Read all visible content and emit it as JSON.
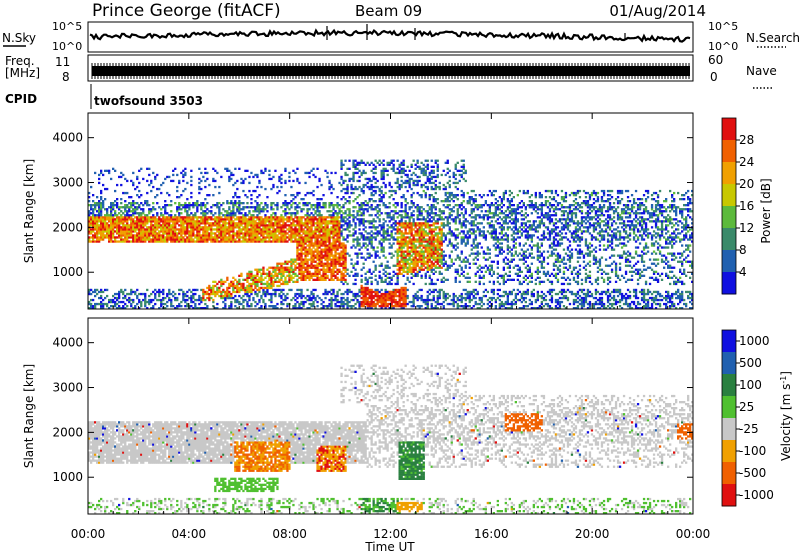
{
  "header": {
    "station": "Prince George (fitACF)",
    "beam": "Beam 09",
    "date": "01/Aug/2014"
  },
  "strips": {
    "nsky_label": "N.Sky",
    "nsky_ticks": [
      "10^5",
      "10^0"
    ],
    "nsearch_label": "N.Search",
    "nsearch_ticks": [
      "10^5",
      "10^0"
    ],
    "freq_label": "Freq.",
    "freq_unit": "[MHz]",
    "freq_ticks": [
      "11",
      "8"
    ],
    "nave_label": "Nave",
    "nave_ticks": [
      "60",
      "0"
    ],
    "cpid_label": "CPID",
    "cpid_value": "twofsound 3503"
  },
  "colors": {
    "power_scale": [
      "#1010e0",
      "#2060b0",
      "#3a8a6a",
      "#5cba3c",
      "#c8c800",
      "#f0a000",
      "#f06000",
      "#e01010"
    ],
    "velocity_scale": [
      "#1010e0",
      "#2060b0",
      "#2a8040",
      "#50c030",
      "#c8c8c8",
      "#f0a000",
      "#f06000",
      "#e01010"
    ]
  },
  "chart_data": [
    {
      "type": "heatmap",
      "title": "",
      "ylabel": "Slant Range [km]",
      "yticks": [
        "1000",
        "2000",
        "3000",
        "4000"
      ],
      "ylim": [
        180,
        4550
      ],
      "xlim": [
        0,
        24
      ],
      "colorbar": {
        "label": "Power [dB]",
        "ticks": [
          "4",
          "8",
          "12",
          "16",
          "20",
          "24",
          "28"
        ],
        "range": [
          0,
          32
        ]
      },
      "features": [
        {
          "t_start": 0.0,
          "t_end": 10.0,
          "r_low": 1650,
          "r_high": 2200,
          "value_db": 20
        },
        {
          "t_start": 8.2,
          "t_end": 10.2,
          "r_low": 800,
          "r_high": 1600,
          "value_db": 27
        },
        {
          "t_start": 11.0,
          "t_end": 12.5,
          "r_low": 200,
          "r_high": 550,
          "value_db": 30
        },
        {
          "t_start": 12.2,
          "t_end": 13.8,
          "r_low": 900,
          "r_high": 2000,
          "value_db": 26
        },
        {
          "t_start": 5.5,
          "t_end": 8.0,
          "r_low": 400,
          "r_high": 900,
          "value_db": 24
        }
      ]
    },
    {
      "type": "heatmap",
      "title": "",
      "ylabel": "Slant Range [km]",
      "xlabel": "Time UT",
      "yticks": [
        "1000",
        "2000",
        "3000",
        "4000"
      ],
      "xticks": [
        "00:00",
        "04:00",
        "08:00",
        "12:00",
        "16:00",
        "20:00",
        "00:00"
      ],
      "ylim": [
        180,
        4550
      ],
      "xlim": [
        0,
        24
      ],
      "colorbar": {
        "label": "Velocity [m s-1]",
        "ticks": [
          "1000",
          "500",
          "100",
          "25",
          "-25",
          "-100",
          "-500",
          "-1000"
        ]
      },
      "features": [
        {
          "t_start": 0.0,
          "t_end": 5.0,
          "r_low": 1300,
          "r_high": 2200,
          "value_ms": 0
        },
        {
          "t_start": 5.8,
          "t_end": 8.0,
          "r_low": 1100,
          "r_high": 1800,
          "value_ms": -200
        },
        {
          "t_start": 12.3,
          "t_end": 13.2,
          "r_low": 900,
          "r_high": 1800,
          "value_ms": 300
        },
        {
          "t_start": 9.0,
          "t_end": 10.2,
          "r_low": 1100,
          "r_high": 1700,
          "value_ms": -300
        },
        {
          "t_start": 16.5,
          "t_end": 18.0,
          "r_low": 2000,
          "r_high": 2400,
          "value_ms": -300
        },
        {
          "t_start": 23.3,
          "t_end": 24.0,
          "r_low": 1800,
          "r_high": 2200,
          "value_ms": -200
        }
      ]
    }
  ]
}
